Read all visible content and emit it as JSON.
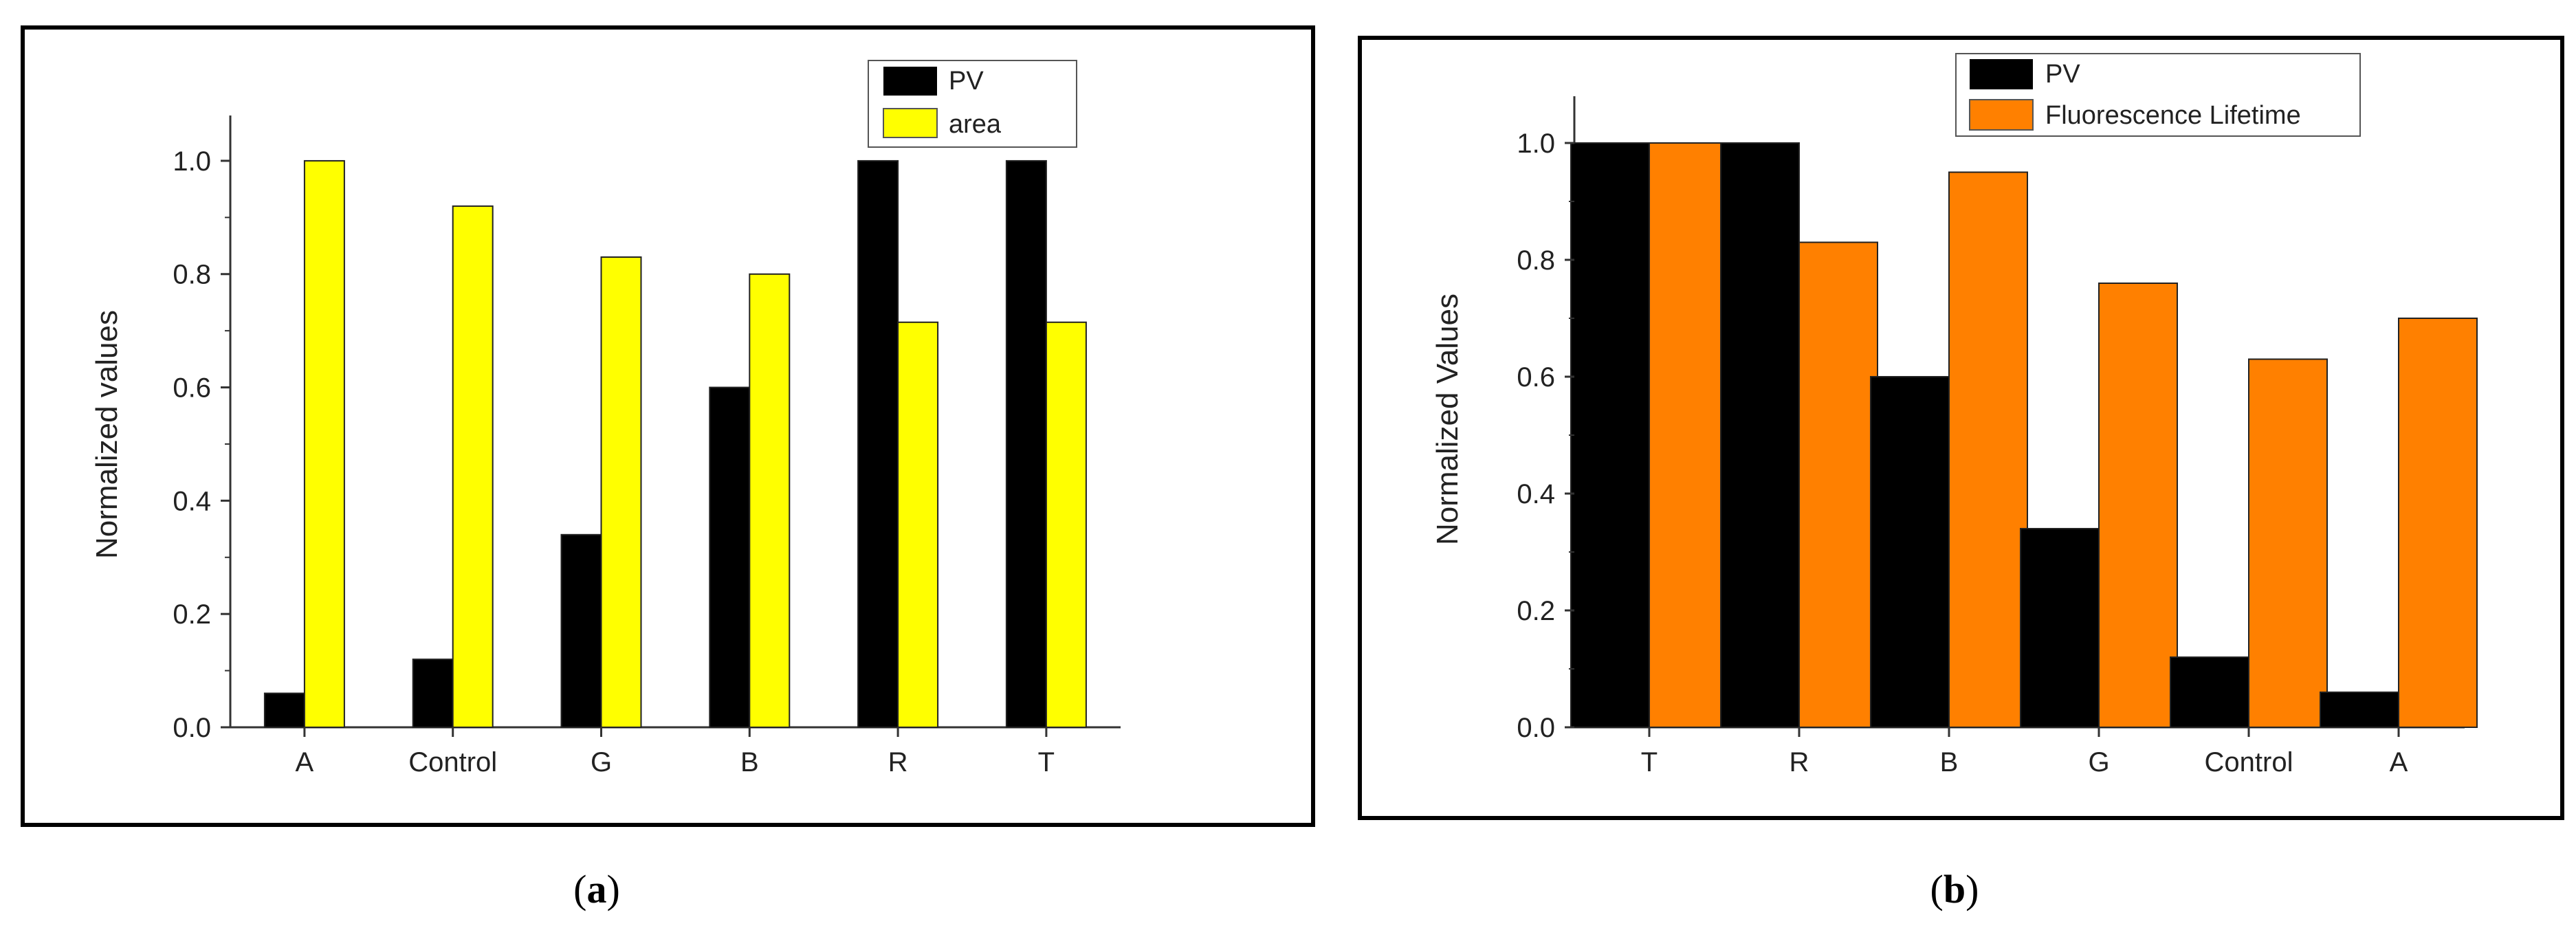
{
  "colors": {
    "pv": "#000000",
    "area": "#ffff00",
    "lifetime": "#ff8000",
    "frame": "#000000"
  },
  "chart_data": [
    {
      "type": "bar",
      "panel_label": "a",
      "title": "",
      "xlabel": "",
      "ylabel": "Normalized values",
      "ylim": [
        0,
        1.08
      ],
      "yticks": [
        "0.0",
        "0.2",
        "0.4",
        "0.6",
        "0.8",
        "1.0"
      ],
      "categories": [
        "A",
        "Control",
        "G",
        "B",
        "R",
        "T"
      ],
      "legend_position": "top-right",
      "series": [
        {
          "name": "PV",
          "values": [
            0.06,
            0.12,
            0.34,
            0.6,
            1.0,
            1.0
          ]
        },
        {
          "name": "area",
          "values": [
            1.0,
            0.92,
            0.83,
            0.8,
            0.715,
            0.715
          ]
        }
      ]
    },
    {
      "type": "bar",
      "panel_label": "b",
      "title": "",
      "xlabel": "",
      "ylabel": "Normalized Values",
      "ylim": [
        0,
        1.08
      ],
      "yticks": [
        "0.0",
        "0.2",
        "0.4",
        "0.6",
        "0.8",
        "1.0"
      ],
      "categories": [
        "T",
        "R",
        "B",
        "G",
        "Control",
        "A"
      ],
      "legend_position": "top-center",
      "series": [
        {
          "name": "PV",
          "values": [
            1.0,
            1.0,
            0.6,
            0.34,
            0.12,
            0.06
          ]
        },
        {
          "name": "Fluorescence Lifetime",
          "values": [
            1.0,
            0.83,
            0.95,
            0.76,
            0.63,
            0.7
          ]
        }
      ]
    }
  ]
}
